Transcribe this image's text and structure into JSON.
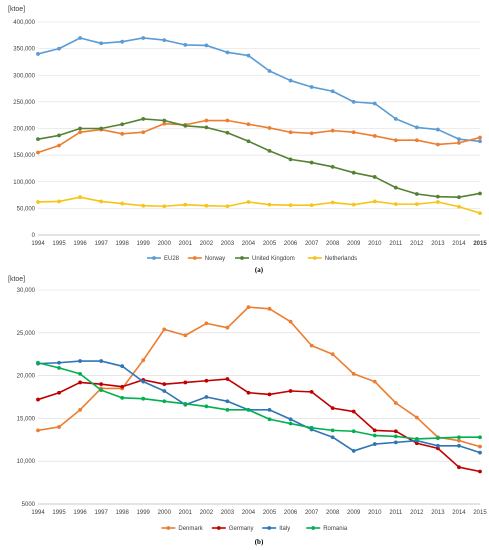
{
  "chart_data": [
    {
      "type": "line",
      "unit_label": "[ktoe]",
      "caption": "(a)",
      "x": [
        "1994",
        "1995",
        "1996",
        "1997",
        "1998",
        "1999",
        "2000",
        "2001",
        "2002",
        "2003",
        "2004",
        "2005",
        "2006",
        "2007",
        "2008",
        "2009",
        "2010",
        "2011",
        "2012",
        "2013",
        "2014",
        "2015"
      ],
      "ylim": [
        0,
        400000
      ],
      "yticks": [
        0,
        50000,
        100000,
        150000,
        200000,
        250000,
        300000,
        350000,
        400000
      ],
      "ytick_labels": [
        "0",
        "50,000",
        "100,000",
        "150,000",
        "200,000",
        "250,000",
        "300,000",
        "350,000",
        "400,000"
      ],
      "grid": true,
      "legend_position": "bottom",
      "series": [
        {
          "name": "EU28",
          "color": "#5b9bd5",
          "values": [
            340000,
            350000,
            370000,
            360000,
            363000,
            370000,
            366000,
            357000,
            356000,
            343000,
            337000,
            308000,
            290000,
            278000,
            270000,
            250000,
            247000,
            218000,
            202000,
            198000,
            180000,
            176000
          ]
        },
        {
          "name": "Norway",
          "color": "#ed7d31",
          "values": [
            155000,
            168000,
            193000,
            198000,
            190000,
            193000,
            209000,
            207000,
            215000,
            215000,
            208000,
            201000,
            193000,
            191000,
            196000,
            193000,
            186000,
            178000,
            178000,
            170000,
            173000,
            183000
          ]
        },
        {
          "name": "United Kingdom",
          "color": "#548235",
          "values": [
            180000,
            187000,
            200000,
            200000,
            208000,
            218000,
            215000,
            205000,
            202000,
            192000,
            176000,
            158000,
            142000,
            136000,
            128000,
            117000,
            109000,
            89000,
            77000,
            72000,
            71000,
            78000
          ]
        },
        {
          "name": "Netherlands",
          "color": "#f5c518",
          "values": [
            62000,
            63000,
            71000,
            63000,
            59000,
            55000,
            54000,
            57000,
            55000,
            54000,
            62000,
            57000,
            56000,
            56000,
            61000,
            57000,
            63000,
            58000,
            58000,
            62000,
            53000,
            41000
          ]
        }
      ]
    },
    {
      "type": "line",
      "unit_label": "[ktoe]",
      "caption": "(b)",
      "x": [
        "1994",
        "1995",
        "1996",
        "1997",
        "1998",
        "1999",
        "2000",
        "2001",
        "2002",
        "2003",
        "2004",
        "2005",
        "2006",
        "2007",
        "2008",
        "2009",
        "2010",
        "2011",
        "2012",
        "2013",
        "2014",
        "2015"
      ],
      "ylim": [
        5000,
        30000
      ],
      "yticks": [
        5000,
        10000,
        15000,
        20000,
        25000,
        30000
      ],
      "ytick_labels": [
        "5000",
        "10,000",
        "15,000",
        "20,000",
        "25,000",
        "30,000"
      ],
      "grid": true,
      "legend_position": "bottom",
      "series": [
        {
          "name": "Denmark",
          "color": "#ed7d31",
          "values": [
            13600,
            14000,
            16000,
            18500,
            18500,
            21800,
            25400,
            24700,
            26100,
            25600,
            28000,
            27800,
            26300,
            23500,
            22500,
            20200,
            19300,
            16800,
            15100,
            12800,
            12400,
            11700
          ]
        },
        {
          "name": "Germany",
          "color": "#c00000",
          "values": [
            17200,
            18000,
            19200,
            19000,
            18700,
            19500,
            19000,
            19200,
            19400,
            19600,
            18000,
            17800,
            18200,
            18100,
            16200,
            15800,
            13600,
            13500,
            12100,
            11500,
            9300,
            8800
          ]
        },
        {
          "name": "Italy",
          "color": "#2e75b6",
          "values": [
            21400,
            21500,
            21700,
            21700,
            21100,
            19300,
            18200,
            16600,
            17500,
            17000,
            16000,
            16000,
            14900,
            13700,
            12800,
            11200,
            12000,
            12200,
            12400,
            11800,
            11800,
            11000
          ]
        },
        {
          "name": "Romania",
          "color": "#00b050",
          "values": [
            21500,
            20900,
            20200,
            18300,
            17400,
            17300,
            17000,
            16700,
            16400,
            16000,
            16000,
            14900,
            14400,
            13900,
            13600,
            13500,
            13000,
            12900,
            12600,
            12700,
            12800,
            12800
          ]
        }
      ]
    }
  ]
}
